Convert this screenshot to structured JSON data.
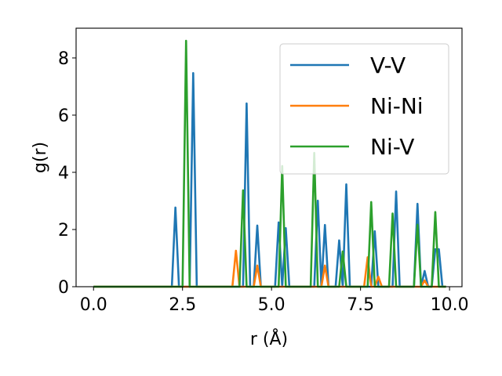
{
  "chart_data": {
    "type": "line",
    "title": "",
    "xlabel": "r (Å)",
    "ylabel": "g(r)",
    "xlim": [
      -0.49,
      10.35
    ],
    "ylim": [
      0,
      9.04
    ],
    "xticks": [
      0.0,
      2.5,
      5.0,
      7.5,
      10.0
    ],
    "xtick_labels": [
      "0.0",
      "2.5",
      "5.0",
      "7.5",
      "10.0"
    ],
    "yticks": [
      0,
      2,
      4,
      6,
      8
    ],
    "ytick_labels": [
      "0",
      "2",
      "4",
      "6",
      "8"
    ],
    "grid": false,
    "legend_position": "top-right",
    "x_start": 0.0,
    "x_step": 0.1,
    "x_count": 100,
    "series": [
      {
        "name": "V-V",
        "color": "#1f77b4",
        "peaks": [
          [
            2.3,
            2.77
          ],
          [
            2.8,
            7.47
          ],
          [
            4.3,
            6.41
          ],
          [
            4.6,
            2.14
          ],
          [
            5.2,
            2.25
          ],
          [
            5.4,
            2.05
          ],
          [
            6.3,
            3.01
          ],
          [
            6.5,
            2.16
          ],
          [
            6.9,
            1.62
          ],
          [
            7.1,
            3.58
          ],
          [
            7.9,
            1.94
          ],
          [
            8.5,
            3.33
          ],
          [
            9.1,
            2.9
          ],
          [
            9.3,
            0.55
          ],
          [
            9.6,
            1.31
          ],
          [
            9.7,
            1.31
          ]
        ]
      },
      {
        "name": "Ni-Ni",
        "color": "#ff7f0e",
        "peaks": [
          [
            4.0,
            1.26
          ],
          [
            4.6,
            0.74
          ],
          [
            6.5,
            0.74
          ],
          [
            7.7,
            1.03
          ],
          [
            8.0,
            0.35
          ],
          [
            9.3,
            0.22
          ]
        ]
      },
      {
        "name": "Ni-V",
        "color": "#2ca02c",
        "peaks": [
          [
            2.6,
            8.6
          ],
          [
            4.2,
            3.37
          ],
          [
            5.3,
            4.22
          ],
          [
            6.2,
            4.68
          ],
          [
            7.0,
            1.23
          ],
          [
            7.8,
            2.96
          ],
          [
            8.4,
            2.56
          ],
          [
            9.1,
            2.17
          ],
          [
            9.6,
            2.61
          ]
        ]
      }
    ]
  }
}
